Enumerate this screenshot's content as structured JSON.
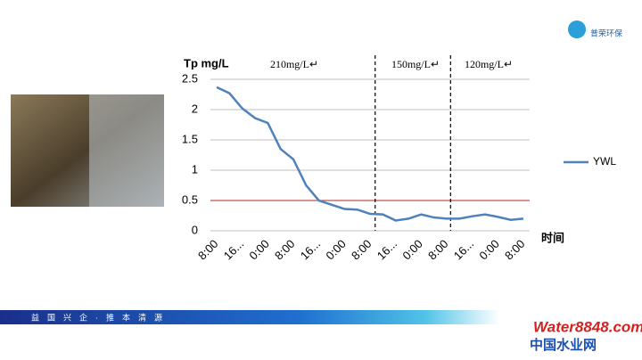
{
  "chart_data": {
    "type": "line",
    "y_label": "Tp mg/L",
    "x_label": "时间",
    "categories": [
      "8:00",
      null,
      "16...",
      null,
      "0:00",
      null,
      "8:00",
      null,
      "16...",
      null,
      "0:00",
      null,
      "8:00",
      null,
      "16...",
      null,
      "0:00",
      null,
      "8:00",
      null,
      "16...",
      null,
      "0:00",
      null,
      "8:00"
    ],
    "series": [
      {
        "name": "YWL",
        "color": "#4f81bd",
        "values": [
          2.37,
          2.27,
          2.02,
          1.86,
          1.78,
          1.35,
          1.18,
          0.75,
          0.5,
          0.43,
          0.36,
          0.35,
          0.28,
          0.27,
          0.17,
          0.2,
          0.27,
          0.22,
          0.2,
          0.2,
          0.24,
          0.27,
          0.23,
          0.18,
          0.2
        ]
      }
    ],
    "ylim": [
      0,
      2.5
    ],
    "yticks": [
      0,
      0.5,
      1,
      1.5,
      2,
      2.5
    ],
    "grid": true,
    "threshold": {
      "value": 0.5,
      "color": "#c0504d"
    },
    "annotations": [
      "210mg/L↵",
      "150mg/L↵",
      "120mg/L↵"
    ],
    "legend": "right"
  },
  "slide": {
    "logo": "普荣环保",
    "banner": "益　国　兴　企　·　推　本　清　源",
    "site": "Water8848.com",
    "site_cn": "中国水业网"
  }
}
